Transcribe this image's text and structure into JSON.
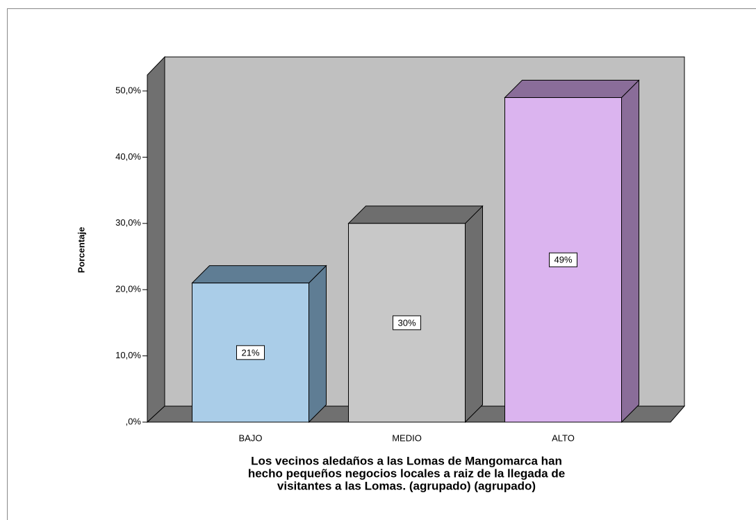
{
  "chart_data": {
    "type": "bar3d",
    "ylabel": "Porcentaje",
    "xlabel": [
      "Los vecinos aledaños a las Lomas de Mangomarca han",
      "hecho pequeños negocios locales a raiz de la llegada de",
      "visitantes a las Lomas. (agrupado) (agrupado)"
    ],
    "categories": [
      "BAJO",
      "MEDIO",
      "ALTO"
    ],
    "values": [
      21,
      30,
      49
    ],
    "value_labels": [
      "21%",
      "30%",
      "49%"
    ],
    "colors": [
      "#aacde8",
      "#c8c8c8",
      "#dbb4ef"
    ],
    "side_colors": [
      "#5f7d94",
      "#6e6e6e",
      "#8a6d99"
    ],
    "ylim": [
      0,
      50
    ],
    "yticks": [
      {
        "value": 0,
        "label": ",0%"
      },
      {
        "value": 10,
        "label": "10,0%"
      },
      {
        "value": 20,
        "label": "20,0%"
      },
      {
        "value": 30,
        "label": "30,0%"
      },
      {
        "value": 40,
        "label": "40,0%"
      },
      {
        "value": 50,
        "label": "50,0%"
      }
    ]
  }
}
